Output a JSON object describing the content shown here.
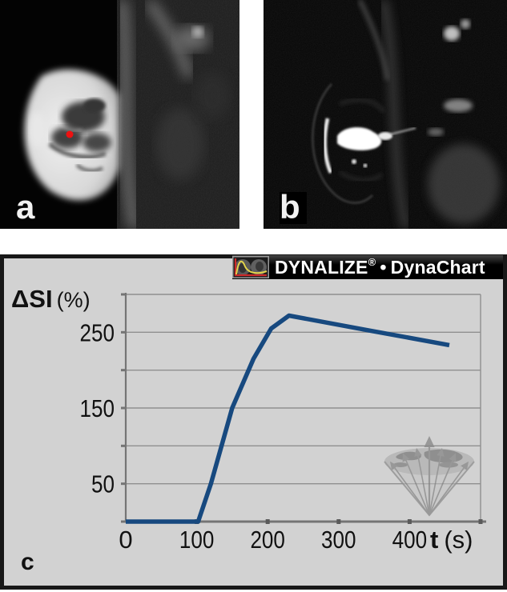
{
  "panels": {
    "a": {
      "label": "a"
    },
    "b": {
      "label": "b"
    },
    "c": {
      "label": "c"
    }
  },
  "header": {
    "brand": "DYNALIZE",
    "reg_mark": "®",
    "separator": "•",
    "product": "DynaChart",
    "logo_icon": "dynalize-curve-thumbnail-icon"
  },
  "chart_data": {
    "type": "line",
    "title": "",
    "ylabel_main": "ΔSI",
    "ylabel_unit": "(%)",
    "xlabel_main": "t",
    "xlabel_unit": "(s)",
    "xlim": [
      0,
      500
    ],
    "ylim": [
      0,
      300
    ],
    "xticks": [
      0,
      100,
      200,
      300,
      400
    ],
    "xtick_marks": [
      100,
      200,
      300,
      400,
      500
    ],
    "ytick_labels": [
      250,
      150,
      50
    ],
    "ytick_marks": [
      0,
      50,
      100,
      150,
      200,
      250,
      300
    ],
    "ygridlines": [
      50,
      100,
      150,
      200,
      250,
      300
    ],
    "grid": "horizontal-only",
    "legend": "none",
    "series": [
      {
        "name": "ΔSI",
        "x": [
          0,
          60,
          102,
          120,
          150,
          180,
          205,
          230,
          345,
          456
        ],
        "y": [
          0,
          0,
          0,
          50,
          150,
          215,
          255,
          272,
          252,
          233
        ]
      }
    ]
  },
  "colors": {
    "curve_blue": "#17497f",
    "panel_bg": "#d2d2d2",
    "grid_gray": "#8f8f8f",
    "axis_gray": "#757575",
    "tick_mark_gray": "#5a5a5a",
    "text_black": "#111111",
    "header_bg": "#0a0a0a",
    "header_text": "#ffffff",
    "roi_marker_red": "#ee1111",
    "watermark_gray": "#8a8a8a"
  }
}
